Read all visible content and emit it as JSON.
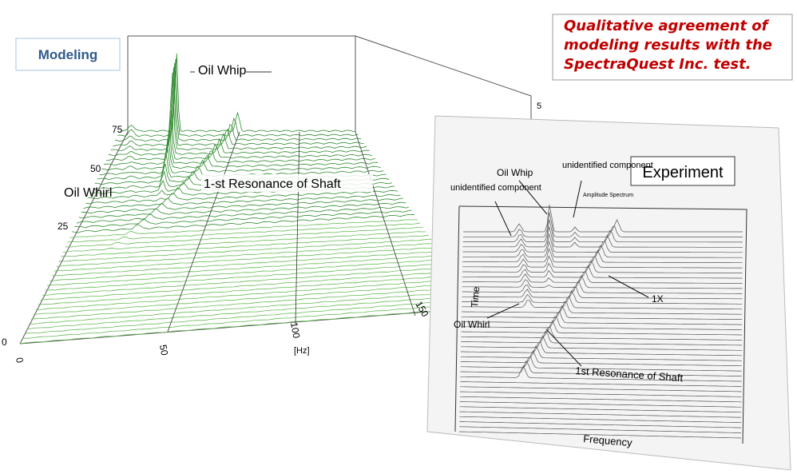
{
  "modeling_label": "Modeling",
  "caption": [
    "Qualitative agreement of",
    "modeling results with the",
    "SpectraQuest Inc. test."
  ],
  "modeling_plot": {
    "annotations": [
      "Oil Whip",
      "Oil Whirl",
      "1-st Resonance of Shaft"
    ],
    "time_ticks": [
      "75",
      "50",
      "25",
      "0"
    ],
    "freq_ticks": [
      "0",
      "50",
      "100",
      "150"
    ],
    "freq_unit": "[Hz]",
    "amp_tick": "5"
  },
  "experiment_plot": {
    "title": "Experiment",
    "subtitle": "Amplitude Spectrum",
    "annotations": [
      "unidentified component",
      "Oil Whip",
      "unidentified component",
      "1X",
      "Oil Whirl",
      "1st Resonance of Shaft"
    ],
    "x_label": "Frequency",
    "y_label": "Time"
  }
}
